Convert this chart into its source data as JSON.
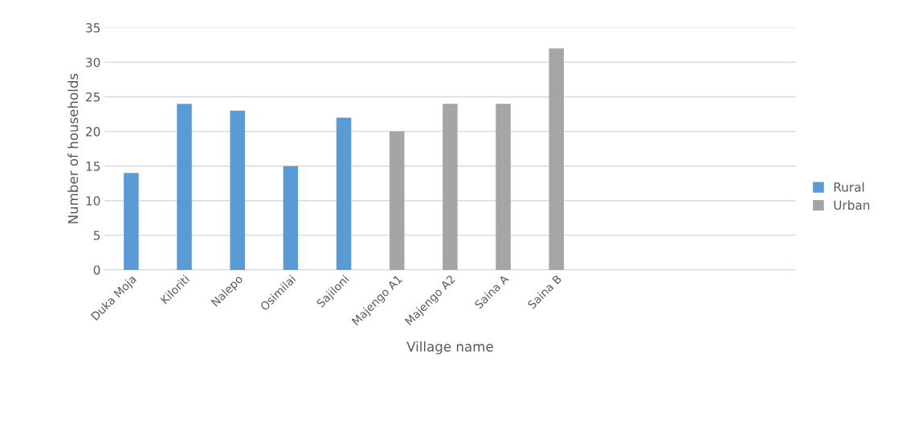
{
  "chart_data": {
    "type": "bar",
    "xlabel": "Village name",
    "ylabel": "Number of households",
    "categories": [
      "Duka Moja",
      "Kiloriti",
      "Nalepo",
      "Osimilai",
      "Sajiloni",
      "Majengo A1",
      "Majengo A2",
      "Saina A",
      "Saina B",
      null,
      null,
      null,
      null
    ],
    "series": [
      {
        "name": "Rural",
        "color": "#5b9bd5",
        "values": [
          14,
          24,
          23,
          15,
          22,
          null,
          null,
          null,
          null,
          null,
          null,
          null,
          null
        ]
      },
      {
        "name": "Urban",
        "color": "#a5a5a5",
        "values": [
          null,
          null,
          null,
          null,
          null,
          20,
          24,
          24,
          32,
          null,
          null,
          null,
          null
        ]
      }
    ],
    "ylim": [
      0,
      35
    ],
    "yticks": [
      0,
      5,
      10,
      15,
      20,
      25,
      30,
      35
    ],
    "grid": "y",
    "legend": "right"
  }
}
